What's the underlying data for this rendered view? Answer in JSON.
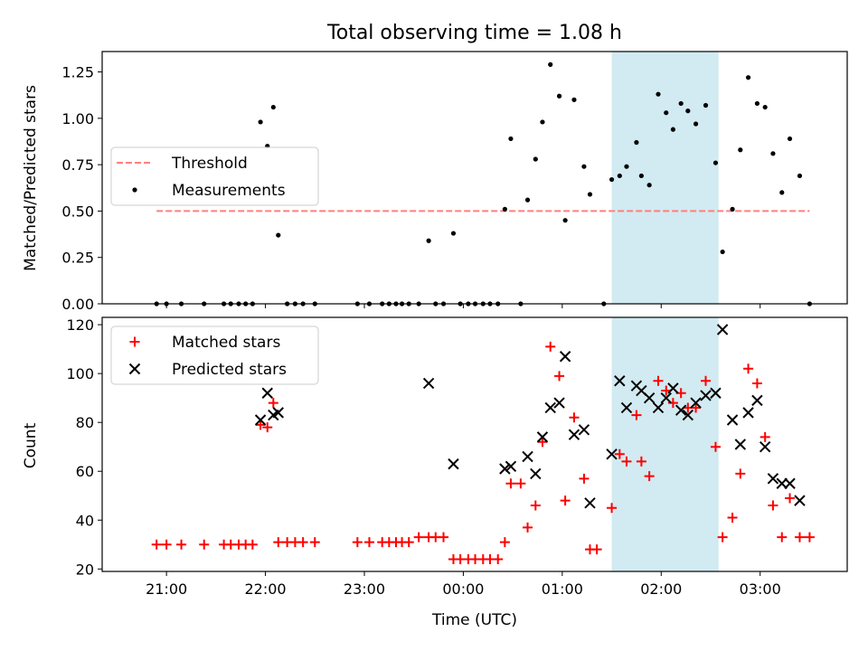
{
  "chart_data": [
    {
      "type": "scatter",
      "title": "Total observing time = 1.08 h",
      "xlabel": "",
      "ylabel": "Matched/Predicted stars",
      "xlim": [
        -3.65,
        3.88
      ],
      "ylim": [
        0,
        1.36
      ],
      "yticks": [
        0,
        0.25,
        0.5,
        0.75,
        1.0,
        1.25
      ],
      "ytick_labels": [
        "0.00",
        "0.25",
        "0.50",
        "0.75",
        "1.00",
        "1.25"
      ],
      "xticks": [
        -3,
        -2,
        -1,
        0,
        1,
        2,
        3
      ],
      "shaded_region": {
        "x0": 1.5,
        "x1": 2.58,
        "color": "#add8e6"
      },
      "legend": {
        "position": "center-left",
        "entries": [
          "Threshold",
          "Measurements"
        ]
      },
      "threshold": {
        "name": "Threshold",
        "x": [
          -3.1,
          3.5
        ],
        "y": 0.5,
        "color": "#ff7f7f",
        "style": "dashed"
      },
      "series": [
        {
          "name": "Measurements",
          "color": "#000000",
          "marker": "dot",
          "points": [
            [
              -3.1,
              0
            ],
            [
              -3.0,
              0
            ],
            [
              -2.85,
              0
            ],
            [
              -2.62,
              0
            ],
            [
              -2.42,
              0
            ],
            [
              -2.35,
              0
            ],
            [
              -2.27,
              0
            ],
            [
              -2.2,
              0
            ],
            [
              -2.13,
              0
            ],
            [
              -2.05,
              0.98
            ],
            [
              -1.98,
              0.85
            ],
            [
              -1.92,
              1.06
            ],
            [
              -1.87,
              0.37
            ],
            [
              -1.78,
              0
            ],
            [
              -1.7,
              0
            ],
            [
              -1.62,
              0
            ],
            [
              -1.5,
              0
            ],
            [
              -1.07,
              0
            ],
            [
              -0.95,
              0
            ],
            [
              -0.82,
              0
            ],
            [
              -0.75,
              0
            ],
            [
              -0.68,
              0
            ],
            [
              -0.62,
              0
            ],
            [
              -0.55,
              0
            ],
            [
              -0.45,
              0
            ],
            [
              -0.35,
              0.34
            ],
            [
              -0.28,
              0
            ],
            [
              -0.2,
              0
            ],
            [
              -0.1,
              0.38
            ],
            [
              -0.03,
              0
            ],
            [
              0.05,
              0
            ],
            [
              0.12,
              0
            ],
            [
              0.2,
              0
            ],
            [
              0.27,
              0
            ],
            [
              0.35,
              0
            ],
            [
              0.42,
              0.51
            ],
            [
              0.48,
              0.89
            ],
            [
              0.58,
              0
            ],
            [
              0.65,
              0.56
            ],
            [
              0.73,
              0.78
            ],
            [
              0.8,
              0.98
            ],
            [
              0.88,
              1.29
            ],
            [
              0.97,
              1.12
            ],
            [
              1.03,
              0.45
            ],
            [
              1.12,
              1.1
            ],
            [
              1.22,
              0.74
            ],
            [
              1.28,
              0.59
            ],
            [
              1.42,
              0
            ],
            [
              1.5,
              0.67
            ],
            [
              1.58,
              0.69
            ],
            [
              1.65,
              0.74
            ],
            [
              1.75,
              0.87
            ],
            [
              1.8,
              0.69
            ],
            [
              1.88,
              0.64
            ],
            [
              1.97,
              1.13
            ],
            [
              2.05,
              1.03
            ],
            [
              2.12,
              0.94
            ],
            [
              2.2,
              1.08
            ],
            [
              2.27,
              1.04
            ],
            [
              2.35,
              0.97
            ],
            [
              2.45,
              1.07
            ],
            [
              2.55,
              0.76
            ],
            [
              2.62,
              0.28
            ],
            [
              2.72,
              0.51
            ],
            [
              2.8,
              0.83
            ],
            [
              2.88,
              1.22
            ],
            [
              2.97,
              1.08
            ],
            [
              3.05,
              1.06
            ],
            [
              3.13,
              0.81
            ],
            [
              3.22,
              0.6
            ],
            [
              3.3,
              0.89
            ],
            [
              3.4,
              0.69
            ],
            [
              3.5,
              0
            ]
          ]
        }
      ]
    },
    {
      "type": "scatter",
      "title": "",
      "xlabel": "Time (UTC)",
      "ylabel": "Count",
      "xlim": [
        -3.65,
        3.88
      ],
      "ylim": [
        19,
        123
      ],
      "yticks": [
        20,
        40,
        60,
        80,
        100,
        120
      ],
      "ytick_labels": [
        "20",
        "40",
        "60",
        "80",
        "100",
        "120"
      ],
      "xticks": [
        -3,
        -2,
        -1,
        0,
        1,
        2,
        3
      ],
      "xtick_labels": [
        "21:00",
        "22:00",
        "23:00",
        "00:00",
        "01:00",
        "02:00",
        "03:00"
      ],
      "shaded_region": {
        "x0": 1.5,
        "x1": 2.58,
        "color": "#add8e6"
      },
      "legend": {
        "position": "top-left",
        "entries": [
          "Matched stars",
          "Predicted stars"
        ]
      },
      "series": [
        {
          "name": "Matched stars",
          "color": "#ff0000",
          "marker": "plus",
          "points": [
            [
              -3.1,
              30
            ],
            [
              -3.0,
              30
            ],
            [
              -2.85,
              30
            ],
            [
              -2.62,
              30
            ],
            [
              -2.42,
              30
            ],
            [
              -2.35,
              30
            ],
            [
              -2.27,
              30
            ],
            [
              -2.2,
              30
            ],
            [
              -2.13,
              30
            ],
            [
              -2.05,
              79
            ],
            [
              -1.98,
              78
            ],
            [
              -1.92,
              88
            ],
            [
              -1.87,
              31
            ],
            [
              -1.78,
              31
            ],
            [
              -1.7,
              31
            ],
            [
              -1.62,
              31
            ],
            [
              -1.5,
              31
            ],
            [
              -1.07,
              31
            ],
            [
              -0.95,
              31
            ],
            [
              -0.82,
              31
            ],
            [
              -0.75,
              31
            ],
            [
              -0.68,
              31
            ],
            [
              -0.62,
              31
            ],
            [
              -0.55,
              31
            ],
            [
              -0.45,
              33
            ],
            [
              -0.35,
              33
            ],
            [
              -0.28,
              33
            ],
            [
              -0.2,
              33
            ],
            [
              -0.1,
              24
            ],
            [
              -0.03,
              24
            ],
            [
              0.05,
              24
            ],
            [
              0.12,
              24
            ],
            [
              0.2,
              24
            ],
            [
              0.27,
              24
            ],
            [
              0.35,
              24
            ],
            [
              0.42,
              31
            ],
            [
              0.48,
              55
            ],
            [
              0.58,
              55
            ],
            [
              0.65,
              37
            ],
            [
              0.73,
              46
            ],
            [
              0.8,
              72
            ],
            [
              0.88,
              111
            ],
            [
              0.97,
              99
            ],
            [
              1.03,
              48
            ],
            [
              1.12,
              82
            ],
            [
              1.22,
              57
            ],
            [
              1.28,
              28
            ],
            [
              1.35,
              28
            ],
            [
              1.5,
              45
            ],
            [
              1.58,
              67
            ],
            [
              1.65,
              64
            ],
            [
              1.75,
              83
            ],
            [
              1.8,
              64
            ],
            [
              1.88,
              58
            ],
            [
              1.97,
              97
            ],
            [
              2.05,
              93
            ],
            [
              2.12,
              88
            ],
            [
              2.2,
              92
            ],
            [
              2.27,
              86
            ],
            [
              2.35,
              86
            ],
            [
              2.45,
              97
            ],
            [
              2.55,
              70
            ],
            [
              2.62,
              33
            ],
            [
              2.72,
              41
            ],
            [
              2.8,
              59
            ],
            [
              2.88,
              102
            ],
            [
              2.97,
              96
            ],
            [
              3.05,
              74
            ],
            [
              3.13,
              46
            ],
            [
              3.22,
              33
            ],
            [
              3.3,
              49
            ],
            [
              3.4,
              33
            ],
            [
              3.5,
              33
            ]
          ]
        },
        {
          "name": "Predicted stars",
          "color": "#000000",
          "marker": "x",
          "points": [
            [
              -2.05,
              81
            ],
            [
              -1.98,
              92
            ],
            [
              -1.92,
              83
            ],
            [
              -1.87,
              84
            ],
            [
              -0.35,
              96
            ],
            [
              -0.1,
              63
            ],
            [
              0.42,
              61
            ],
            [
              0.48,
              62
            ],
            [
              0.65,
              66
            ],
            [
              0.73,
              59
            ],
            [
              0.8,
              74
            ],
            [
              0.88,
              86
            ],
            [
              0.97,
              88
            ],
            [
              1.03,
              107
            ],
            [
              1.12,
              75
            ],
            [
              1.22,
              77
            ],
            [
              1.28,
              47
            ],
            [
              1.5,
              67
            ],
            [
              1.58,
              97
            ],
            [
              1.65,
              86
            ],
            [
              1.75,
              95
            ],
            [
              1.8,
              93
            ],
            [
              1.88,
              90
            ],
            [
              1.97,
              86
            ],
            [
              2.05,
              90
            ],
            [
              2.12,
              94
            ],
            [
              2.2,
              85
            ],
            [
              2.27,
              83
            ],
            [
              2.35,
              88
            ],
            [
              2.45,
              91
            ],
            [
              2.55,
              92
            ],
            [
              2.62,
              118
            ],
            [
              2.72,
              81
            ],
            [
              2.8,
              71
            ],
            [
              2.88,
              84
            ],
            [
              2.97,
              89
            ],
            [
              3.05,
              70
            ],
            [
              3.13,
              57
            ],
            [
              3.22,
              55
            ],
            [
              3.3,
              55
            ],
            [
              3.4,
              48
            ]
          ]
        }
      ]
    }
  ]
}
